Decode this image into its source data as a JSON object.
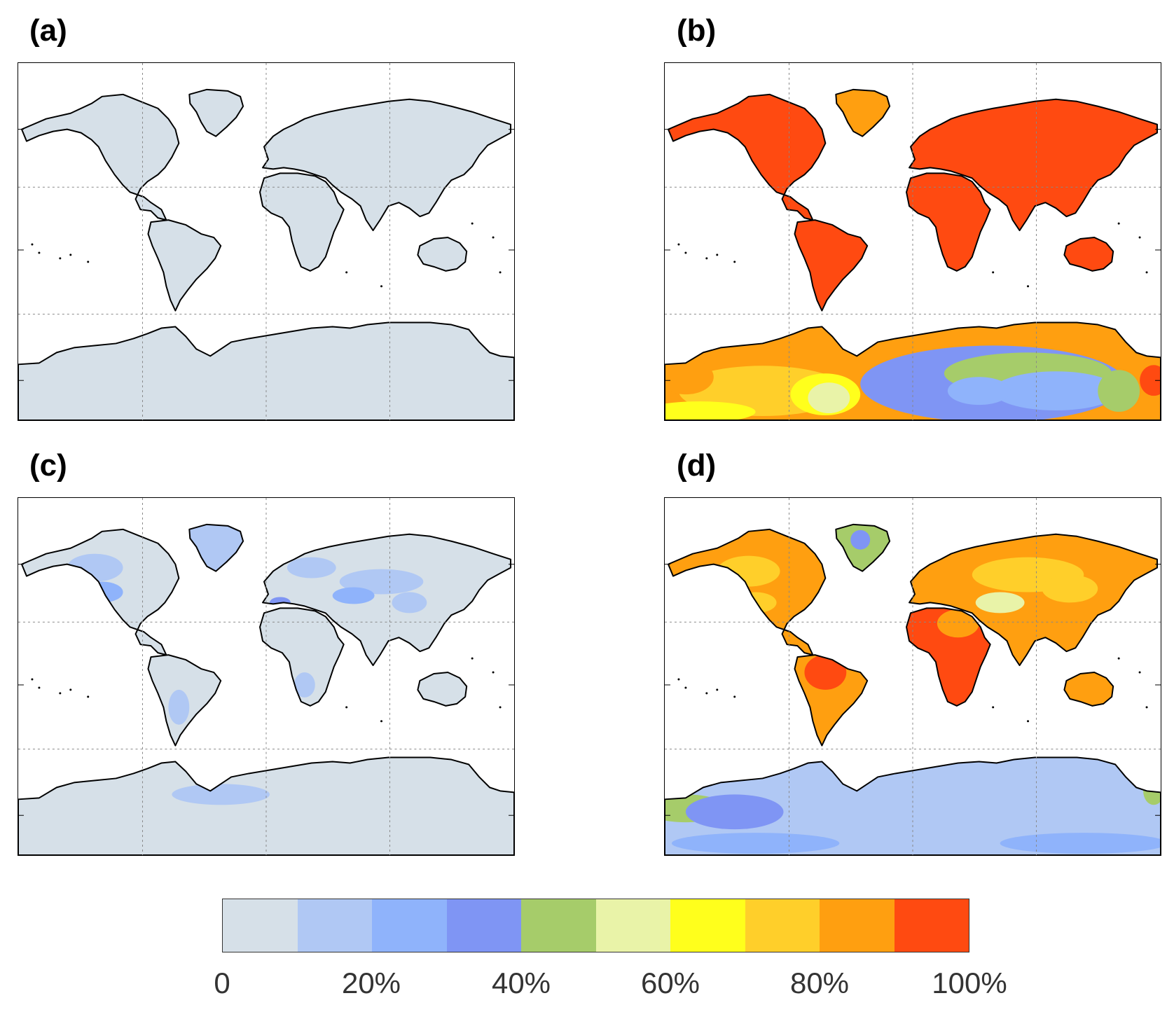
{
  "panels": [
    {
      "id": "a",
      "label": "(a)"
    },
    {
      "id": "b",
      "label": "(b)"
    },
    {
      "id": "c",
      "label": "(c)"
    },
    {
      "id": "d",
      "label": "(d)"
    }
  ],
  "colorbar": {
    "colors": [
      "#d6e0e8",
      "#b0c8f4",
      "#8fb3fb",
      "#7f95f4",
      "#a6cc6a",
      "#e9f3a8",
      "#ffff1c",
      "#ffcf2a",
      "#ff9f10",
      "#ff4a11"
    ],
    "ticks": [
      "0",
      "20%",
      "40%",
      "60%",
      "80%",
      "100%"
    ]
  },
  "colors": {
    "ocean": "#ffffff",
    "coastline": "#000000",
    "grid": "#888888"
  }
}
